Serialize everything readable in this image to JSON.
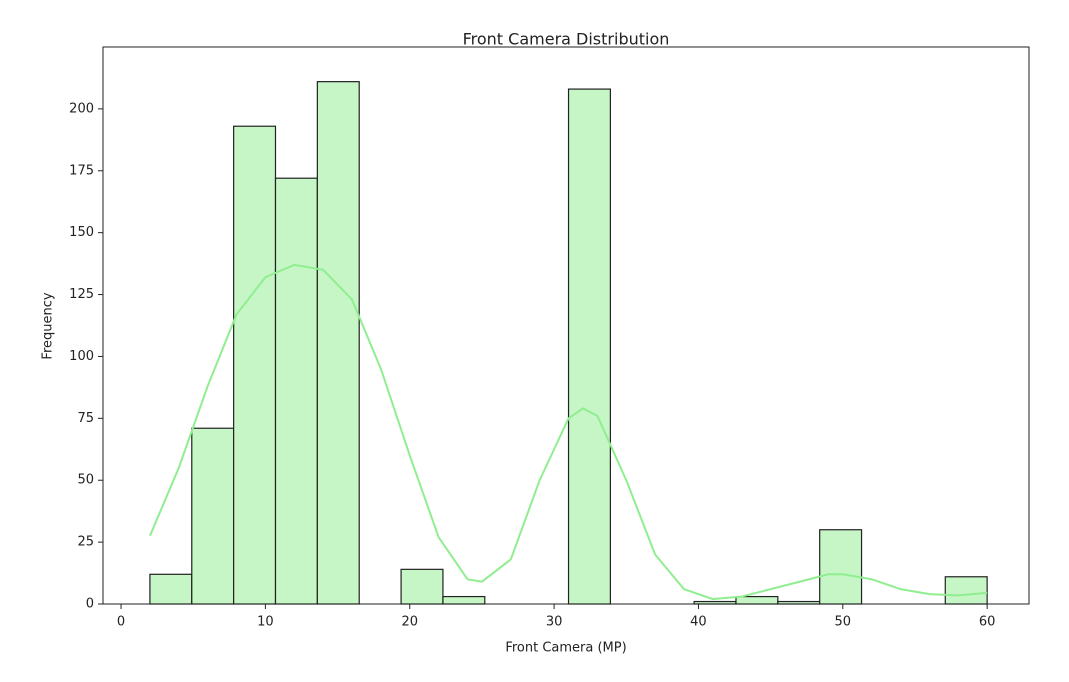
{
  "chart_data": {
    "type": "histogram",
    "title": "Front Camera Distribution",
    "x_label": "Front Camera (MP)",
    "y_label": "Frequency",
    "bins": [
      2,
      4.9,
      7.8,
      10.7,
      13.6,
      16.5,
      19.4,
      22.3,
      25.2,
      28.1,
      31,
      33.9,
      36.8,
      39.7,
      42.6,
      45.5,
      48.4,
      51.3,
      54.2,
      57.1,
      60
    ],
    "values": [
      12,
      71,
      193,
      172,
      211,
      0,
      14,
      3,
      0,
      0,
      208,
      0,
      0,
      1,
      3,
      1,
      30,
      0,
      0,
      11
    ],
    "color": "#c6f5c6",
    "edge_color": "#222222",
    "kde": {
      "color": "#90ee90",
      "x": [
        2,
        4,
        6,
        8,
        10,
        12,
        14,
        16,
        18,
        20,
        22,
        24,
        25,
        27,
        29,
        31,
        32,
        33,
        35,
        37,
        39,
        41,
        43,
        45,
        47,
        49,
        50,
        52,
        54,
        56,
        58,
        60
      ],
      "values": [
        27.5,
        55,
        88,
        117,
        132,
        137,
        135,
        123,
        95,
        60,
        27,
        10,
        9,
        18,
        50,
        75,
        79,
        76,
        50,
        20,
        6,
        2,
        3,
        6,
        9,
        12,
        12,
        10,
        6,
        4,
        3.5,
        4.5
      ]
    },
    "xlim": [
      -1.25,
      62.9
    ],
    "ylim": [
      0,
      225
    ],
    "xticks": [
      0,
      10,
      20,
      30,
      40,
      50,
      60
    ],
    "yticks": [
      0,
      25,
      50,
      75,
      100,
      125,
      150,
      175,
      200
    ]
  }
}
